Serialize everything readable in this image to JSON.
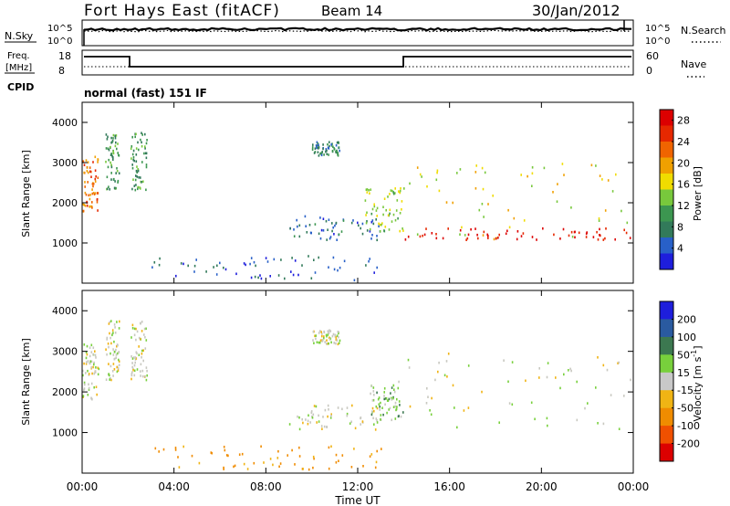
{
  "header": {
    "station": "Fort Hays East (fitACF)",
    "beam": "Beam 14",
    "date": "30/Jan/2012"
  },
  "panels": {
    "nsky": {
      "left_label": "N.Sky",
      "left_ticks": [
        "10^5",
        "10^0"
      ],
      "right_label": "N.Search",
      "right_ticks": [
        "10^5",
        "10^0"
      ]
    },
    "freq": {
      "left_label_1": "Freq.",
      "left_label_2": "[MHz]",
      "left_ticks": [
        "18",
        "8"
      ],
      "right_label": "Nave",
      "right_ticks": [
        "60",
        "0"
      ]
    },
    "cpid": {
      "label": "CPID",
      "value": "normal (fast) 151 IF"
    }
  },
  "colors": {
    "power_scale": [
      "#1e1edc",
      "#2860c8",
      "#327a5a",
      "#3c9650",
      "#78c83c",
      "#f0dc00",
      "#f0a000",
      "#f06400",
      "#e62800",
      "#dc0000"
    ],
    "velocity_scale": [
      "#1e1edc",
      "#2a5aa0",
      "#3c7850",
      "#50a03c",
      "#78d03c",
      "#c8c8c8",
      "#c8c8c8",
      "#f0b414",
      "#f08c00",
      "#f05000",
      "#e62800",
      "#dc0000"
    ],
    "velocity_grey": "#c8c8c0"
  },
  "chart_data": [
    {
      "type": "heatmap",
      "title": "Fort Hays East (fitACF)",
      "ylabel": "Slant Range [km]",
      "xlim": [
        "00:00",
        "24:00"
      ],
      "ylim": [
        0,
        4500
      ],
      "yticks": [
        "1000",
        "2000",
        "3000",
        "4000"
      ],
      "colorbar": {
        "label": "Power [dB]",
        "ticks": [
          "28",
          "24",
          "20",
          "16",
          "12",
          "8",
          "4"
        ],
        "range": [
          0,
          30
        ]
      },
      "regions": [
        {
          "t": [
            0.0,
            0.7
          ],
          "r": [
            1800,
            3200
          ],
          "value": 22
        },
        {
          "t": [
            1.0,
            1.6
          ],
          "r": [
            2300,
            3800
          ],
          "value": 10
        },
        {
          "t": [
            2.1,
            2.8
          ],
          "r": [
            2300,
            3800
          ],
          "value": 10
        },
        {
          "t": [
            10.0,
            11.2
          ],
          "r": [
            3200,
            3550
          ],
          "value": 8
        },
        {
          "t": [
            9.0,
            13.0
          ],
          "r": [
            1100,
            1700
          ],
          "value": 6
        },
        {
          "t": [
            12.3,
            14.0
          ],
          "r": [
            1300,
            2400
          ],
          "value": 14
        },
        {
          "t": [
            14.0,
            24.0
          ],
          "r": [
            1100,
            3000
          ],
          "value": 16
        },
        {
          "t": [
            14.0,
            24.0
          ],
          "r": [
            1100,
            1400
          ],
          "value": 28
        },
        {
          "t": [
            3.0,
            13.0
          ],
          "r": [
            100,
            700
          ],
          "value": 5
        }
      ]
    },
    {
      "type": "heatmap",
      "ylabel": "Slant Range [km]",
      "xlabel": "Time UT",
      "xlim": [
        "00:00",
        "24:00"
      ],
      "ylim": [
        0,
        4500
      ],
      "yticks": [
        "1000",
        "2000",
        "3000",
        "4000"
      ],
      "xticks": [
        "00:00",
        "04:00",
        "08:00",
        "12:00",
        "16:00",
        "20:00",
        "00:00"
      ],
      "colorbar": {
        "label": "Velocity [m s",
        "label_sup": "-1",
        "label_end": "]",
        "ticks": [
          "200",
          "100",
          "50",
          "15",
          "-15",
          "-50",
          "-100",
          "-200"
        ],
        "range": [
          -250,
          250
        ]
      },
      "regions": [
        {
          "t": [
            0.0,
            0.7
          ],
          "r": [
            1800,
            3200
          ],
          "value": 0
        },
        {
          "t": [
            1.0,
            1.6
          ],
          "r": [
            2300,
            3800
          ],
          "value": 0
        },
        {
          "t": [
            2.1,
            2.8
          ],
          "r": [
            2300,
            3800
          ],
          "value": 0
        },
        {
          "t": [
            10.0,
            11.2
          ],
          "r": [
            3200,
            3550
          ],
          "value": 0
        },
        {
          "t": [
            9.0,
            13.0
          ],
          "r": [
            1100,
            1700
          ],
          "value": 0
        },
        {
          "t": [
            12.5,
            14.0
          ],
          "r": [
            1300,
            2300
          ],
          "value": 30
        },
        {
          "t": [
            14.0,
            24.0
          ],
          "r": [
            1100,
            3000
          ],
          "value": 0
        },
        {
          "t": [
            3.0,
            13.0
          ],
          "r": [
            100,
            700
          ],
          "value": -60
        }
      ]
    }
  ]
}
